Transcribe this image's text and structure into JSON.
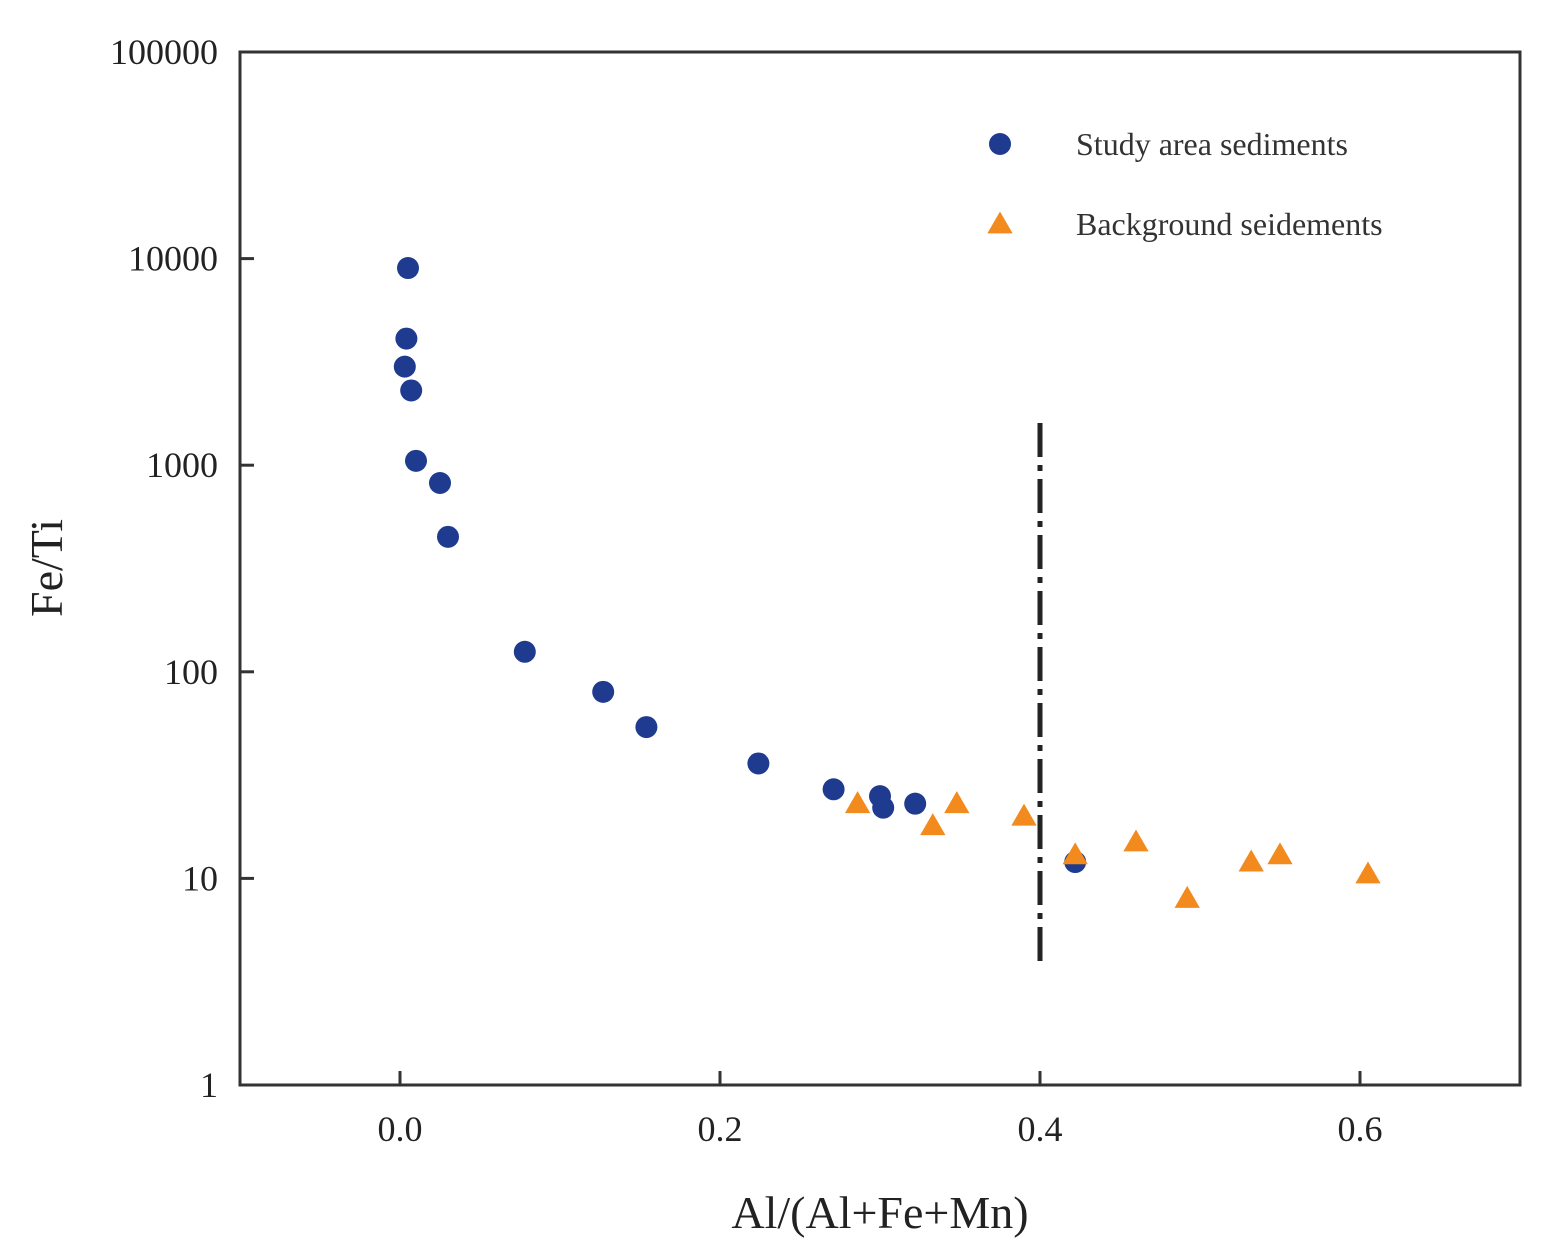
{
  "chart_data": {
    "type": "scatter",
    "title": "",
    "xlabel": "Al/(Al+Fe+Mn)",
    "ylabel": "Fe/Ti",
    "xlim": [
      -0.1,
      0.7
    ],
    "ylim": [
      1,
      100000
    ],
    "y_scale": "log",
    "grid": false,
    "legend_position": "top-right",
    "x_ticks": [
      "0.0",
      "0.2",
      "0.4",
      "0.6"
    ],
    "x_tick_values": [
      0.0,
      0.2,
      0.4,
      0.6
    ],
    "y_ticks": [
      "1",
      "10",
      "100",
      "1000",
      "10000",
      "100000"
    ],
    "y_tick_values": [
      1,
      10,
      100,
      1000,
      10000,
      100000
    ],
    "series": [
      {
        "name": "Study area sediments",
        "marker": "circle",
        "color": "#1f3b8f",
        "points": [
          [
            0.005,
            9000
          ],
          [
            0.004,
            4100
          ],
          [
            0.003,
            3000
          ],
          [
            0.007,
            2300
          ],
          [
            0.01,
            1050
          ],
          [
            0.025,
            820
          ],
          [
            0.03,
            450
          ],
          [
            0.078,
            125
          ],
          [
            0.127,
            80
          ],
          [
            0.154,
            54
          ],
          [
            0.224,
            36
          ],
          [
            0.271,
            27
          ],
          [
            0.3,
            25
          ],
          [
            0.302,
            22
          ],
          [
            0.322,
            23
          ],
          [
            0.422,
            12
          ]
        ]
      },
      {
        "name": "Background seidements",
        "marker": "triangle",
        "color": "#f28a1e",
        "points": [
          [
            0.286,
            23
          ],
          [
            0.333,
            18
          ],
          [
            0.348,
            23
          ],
          [
            0.39,
            20
          ],
          [
            0.422,
            13
          ],
          [
            0.46,
            15
          ],
          [
            0.492,
            8
          ],
          [
            0.532,
            12
          ],
          [
            0.55,
            13
          ],
          [
            0.605,
            10.5
          ]
        ]
      }
    ],
    "reference_lines": [
      {
        "orientation": "vertical",
        "x": 0.4,
        "y_range": [
          3.8,
          1600
        ],
        "style": "dashdot",
        "color": "#222222"
      }
    ]
  }
}
